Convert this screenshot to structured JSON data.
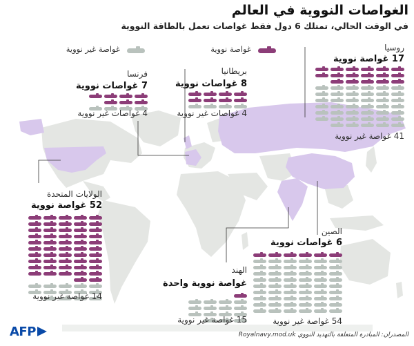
{
  "title": "الغواصات النووية في العالم",
  "subtitle": "في الوقت الحالي، تمتلك 6 دول فقط غواصات تعمل بالطاقة النووية",
  "legend": {
    "nuclear_label": "غواصة نووية",
    "conventional_label": "غواصة غير نووية",
    "nuclear_color": "#8c3d78",
    "conventional_color": "#b9c2bd",
    "highlight_country_color": "#d8c8ec",
    "land_color": "#e4e6e3"
  },
  "countries": [
    {
      "id": "russia",
      "name": "روسيا",
      "nuclear": 17,
      "conventional": 41,
      "nuclear_label": "17 غواصة نووية",
      "conventional_label": "41 غواصة غير نووية"
    },
    {
      "id": "france",
      "name": "فرنسا",
      "nuclear": 7,
      "conventional": 4,
      "nuclear_label": "7 غواصات نووية",
      "conventional_label": "4 غواصات غير نووية"
    },
    {
      "id": "britain",
      "name": "بريطانيا",
      "nuclear": 8,
      "conventional": 4,
      "nuclear_label": "8 غواصات نووية",
      "conventional_label": "4 غواصات غير نووية"
    },
    {
      "id": "usa",
      "name": "الولايات المتحدة",
      "nuclear": 52,
      "conventional": 14,
      "nuclear_label": "52 غواصة نووية",
      "conventional_label": "14 غواصة غير نووية"
    },
    {
      "id": "india",
      "name": "الهند",
      "nuclear": 1,
      "conventional": 15,
      "nuclear_label": "غواصة نووية واحدة",
      "conventional_label": "15 غواصة غير نووية"
    },
    {
      "id": "china",
      "name": "الصين",
      "nuclear": 6,
      "conventional": 54,
      "nuclear_label": "6 غواصات نووية",
      "conventional_label": "54 غواصة غير نووية"
    }
  ],
  "source": "المصدران: المبادرة المتعلقة بالتهديد النووي Royalnavy.mod.uk",
  "logo": "AFP"
}
